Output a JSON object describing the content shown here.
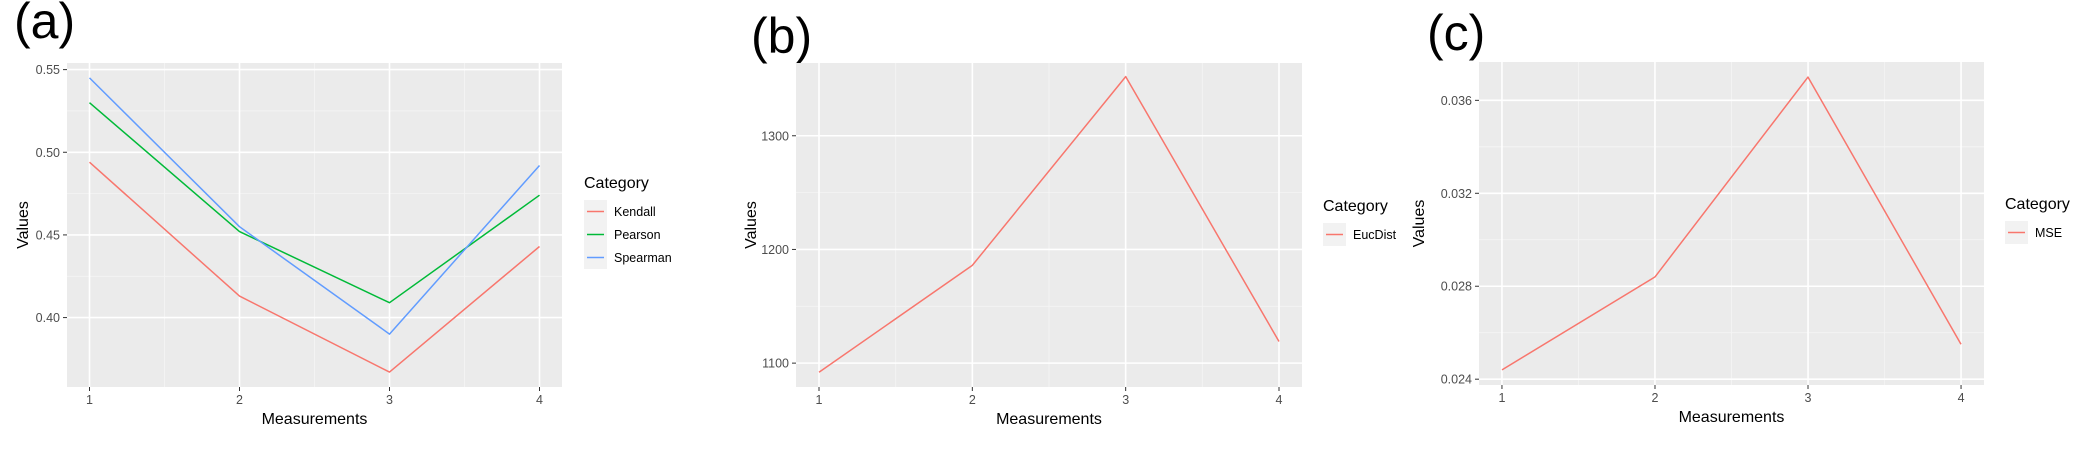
{
  "panels": [
    {
      "label": "(a)",
      "chart_data": {
        "type": "line",
        "x": [
          1,
          2,
          3,
          4
        ],
        "series": [
          {
            "name": "Kendall",
            "values": [
              0.494,
              0.413,
              0.367,
              0.443
            ],
            "color": "#F8766D"
          },
          {
            "name": "Pearson",
            "values": [
              0.53,
              0.452,
              0.409,
              0.474
            ],
            "color": "#00BA38"
          },
          {
            "name": "Spearman",
            "values": [
              0.545,
              0.455,
              0.39,
              0.492
            ],
            "color": "#619CFF"
          }
        ],
        "xlabel": "Measurements",
        "ylabel": "Values",
        "xlim": [
          0.85,
          4.15
        ],
        "ylim": [
          0.358,
          0.554
        ],
        "xticks": [
          1,
          2,
          3,
          4
        ],
        "xtick_labels": [
          "1",
          "2",
          "3",
          "4"
        ],
        "yticks": [
          0.4,
          0.45,
          0.5,
          0.55
        ],
        "ytick_labels": [
          "0.40",
          "0.45",
          "0.50",
          "0.55"
        ],
        "legend_title": "Category",
        "legend_position": "right",
        "grid": true
      }
    },
    {
      "label": "(b)",
      "chart_data": {
        "type": "line",
        "x": [
          1,
          2,
          3,
          4
        ],
        "series": [
          {
            "name": "EucDist",
            "values": [
              1092,
              1186,
              1352,
              1119
            ],
            "color": "#F8766D"
          }
        ],
        "xlabel": "Measurements",
        "ylabel": "Values",
        "xlim": [
          0.85,
          4.15
        ],
        "ylim": [
          1079,
          1364
        ],
        "xticks": [
          1,
          2,
          3,
          4
        ],
        "xtick_labels": [
          "1",
          "2",
          "3",
          "4"
        ],
        "yticks": [
          1100,
          1200,
          1300
        ],
        "ytick_labels": [
          "1100",
          "1200",
          "1300"
        ],
        "legend_title": "Category",
        "legend_position": "right",
        "grid": true
      }
    },
    {
      "label": "(c)",
      "chart_data": {
        "type": "line",
        "x": [
          1,
          2,
          3,
          4
        ],
        "series": [
          {
            "name": "MSE",
            "values": [
              0.0244,
              0.0284,
              0.037,
              0.0255
            ],
            "color": "#F8766D"
          }
        ],
        "xlabel": "Measurements",
        "ylabel": "Values",
        "xlim": [
          0.85,
          4.15
        ],
        "ylim": [
          0.02375,
          0.03765
        ],
        "xticks": [
          1,
          2,
          3,
          4
        ],
        "xtick_labels": [
          "1",
          "2",
          "3",
          "4"
        ],
        "yticks": [
          0.024,
          0.028,
          0.032,
          0.036
        ],
        "ytick_labels": [
          "0.024",
          "0.028",
          "0.032",
          "0.036"
        ],
        "legend_title": "Category",
        "legend_position": "right",
        "grid": true
      }
    }
  ]
}
